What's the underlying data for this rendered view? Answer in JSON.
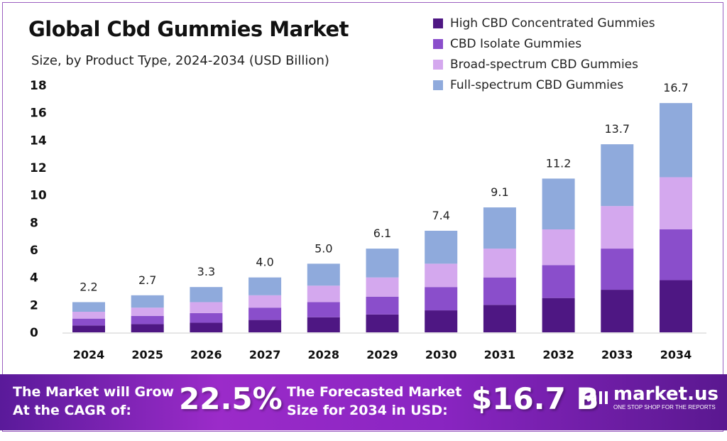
{
  "chart_data": {
    "type": "bar",
    "stacked": true,
    "title": "Global Cbd Gummies Market",
    "subtitle": "Size, by Product Type, 2024-2034 (USD Billion)",
    "categories": [
      "2024",
      "2025",
      "2026",
      "2027",
      "2028",
      "2029",
      "2030",
      "2031",
      "2032",
      "2033",
      "2034"
    ],
    "series": [
      {
        "name": "High CBD Concentrated Gummies",
        "color": "#4e1783",
        "values": [
          0.5,
          0.6,
          0.7,
          0.9,
          1.1,
          1.3,
          1.6,
          2.0,
          2.5,
          3.1,
          3.8
        ]
      },
      {
        "name": "CBD Isolate Gummies",
        "color": "#8a4ecb",
        "values": [
          0.5,
          0.6,
          0.7,
          0.9,
          1.1,
          1.3,
          1.7,
          2.0,
          2.4,
          3.0,
          3.7
        ]
      },
      {
        "name": "Broad-spectrum CBD Gummies",
        "color": "#d4a8ee",
        "values": [
          0.5,
          0.6,
          0.8,
          0.9,
          1.2,
          1.4,
          1.7,
          2.1,
          2.6,
          3.1,
          3.8
        ]
      },
      {
        "name": "Full-spectrum CBD Gummies",
        "color": "#8faadc",
        "values": [
          0.7,
          0.9,
          1.1,
          1.3,
          1.6,
          2.1,
          2.4,
          3.0,
          3.7,
          4.5,
          5.4
        ]
      }
    ],
    "totals": [
      "2.2",
      "2.7",
      "3.3",
      "4.0",
      "5.0",
      "6.1",
      "7.4",
      "9.1",
      "11.2",
      "13.7",
      "16.7"
    ],
    "yticks": [
      "0",
      "2",
      "4",
      "6",
      "8",
      "10",
      "12",
      "14",
      "16",
      "18"
    ],
    "ylim": [
      0,
      18
    ],
    "grid": false,
    "legend_position": "top-right"
  },
  "banner": {
    "cagr_label_1": "The Market will Grow",
    "cagr_label_2": "At the CAGR of:",
    "cagr_value": "22.5%",
    "forecast_label_1": "The Forecasted Market",
    "forecast_label_2": "Size for 2034 in USD:",
    "forecast_value": "$16.7 B",
    "logo_name": "market.us",
    "logo_tagline": "ONE STOP SHOP FOR THE REPORTS"
  }
}
